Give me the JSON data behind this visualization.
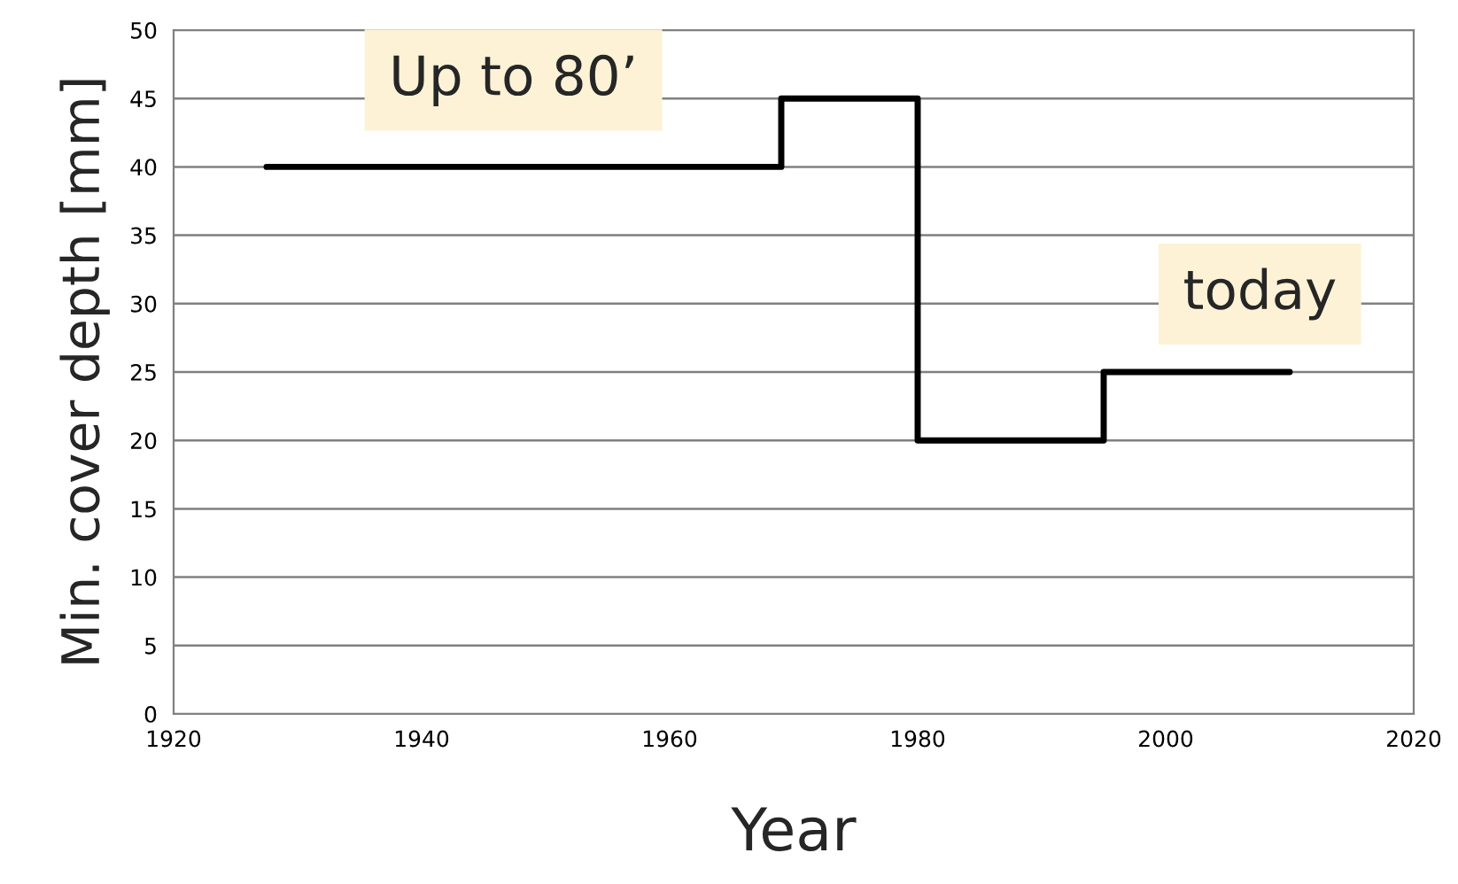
{
  "chart_data": {
    "type": "step",
    "xlabel": "Year",
    "ylabel": "Min. cover depth [mm]",
    "x": [
      1927.5,
      1969,
      1980,
      1995,
      2010
    ],
    "series": [
      {
        "color": "#000000",
        "values": [
          40,
          45,
          20,
          25,
          25
        ]
      }
    ],
    "xlim": [
      1920,
      2020
    ],
    "xticks": [
      1920,
      1940,
      1960,
      1980,
      2000,
      2020
    ],
    "ylim": [
      0,
      50
    ],
    "yticks": [
      0,
      5,
      10,
      15,
      20,
      25,
      30,
      35,
      40,
      45,
      50
    ],
    "grid": "y",
    "annotations": [
      "Up to 80’",
      "today"
    ]
  }
}
